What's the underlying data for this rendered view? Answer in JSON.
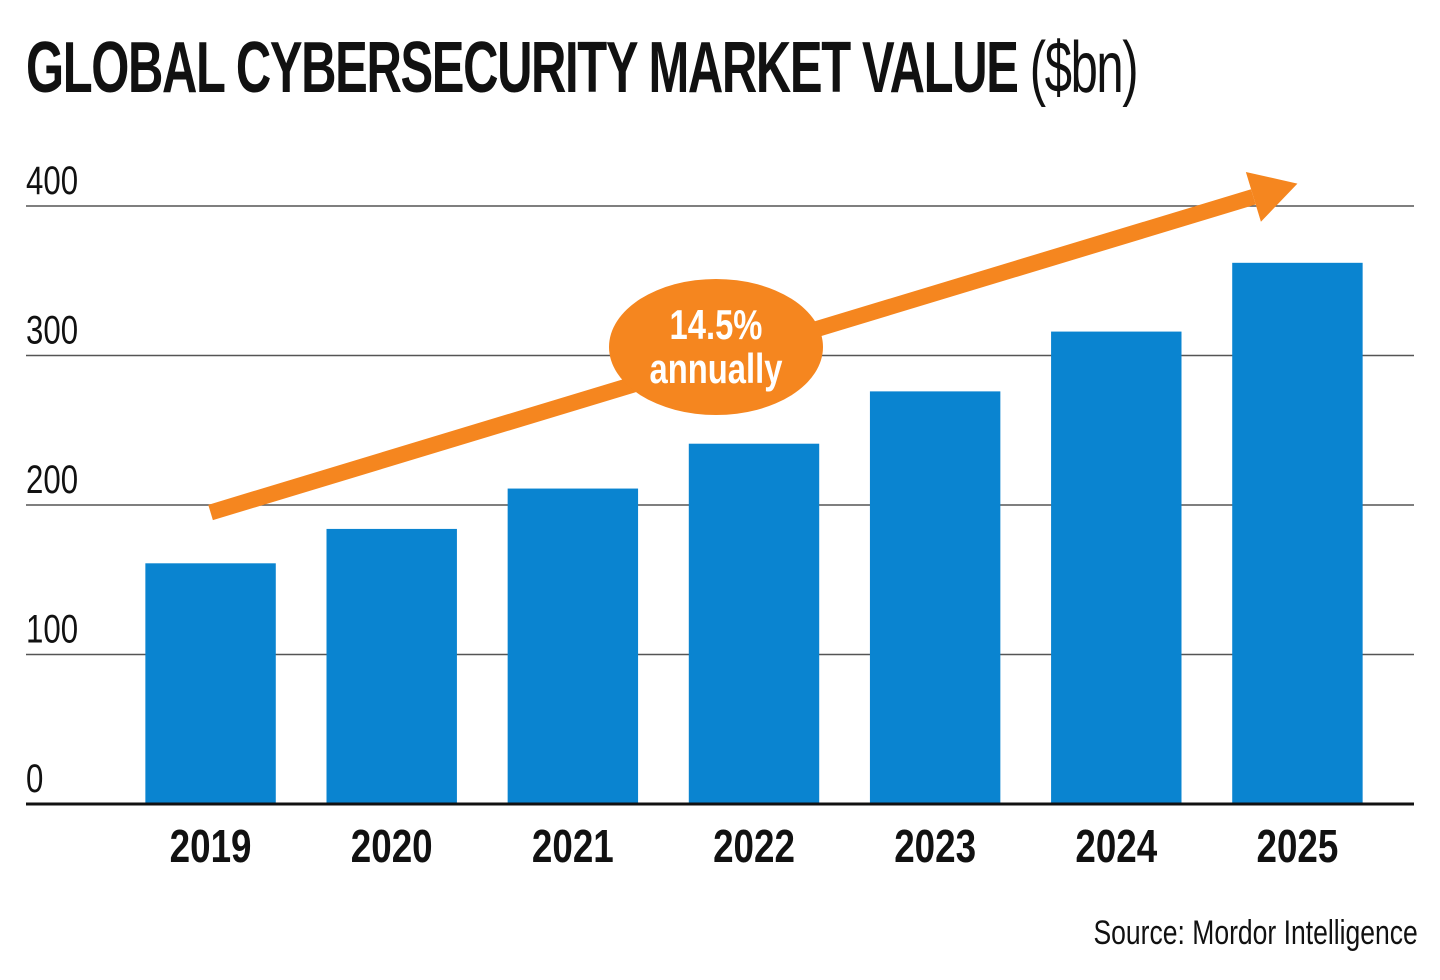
{
  "chart_data": {
    "type": "bar",
    "title": "GLOBAL CYBERSECURITY MARKET VALUE",
    "title_unit": "($bn)",
    "categories": [
      "2019",
      "2020",
      "2021",
      "2022",
      "2023",
      "2024",
      "2025"
    ],
    "values": [
      161,
      184,
      211,
      241,
      276,
      316,
      362
    ],
    "ylim": [
      0,
      400
    ],
    "yticks": [
      0,
      100,
      200,
      300,
      400
    ],
    "grid": true,
    "bar_color": "#0a84d0",
    "annotation": {
      "line1": "14.5%",
      "line2": "annually",
      "color": "#f5861f",
      "start": {
        "category": "2019",
        "value": 195
      },
      "end": {
        "category": "2025",
        "value": 415
      }
    },
    "source": "Source: Mordor Intelligence"
  }
}
